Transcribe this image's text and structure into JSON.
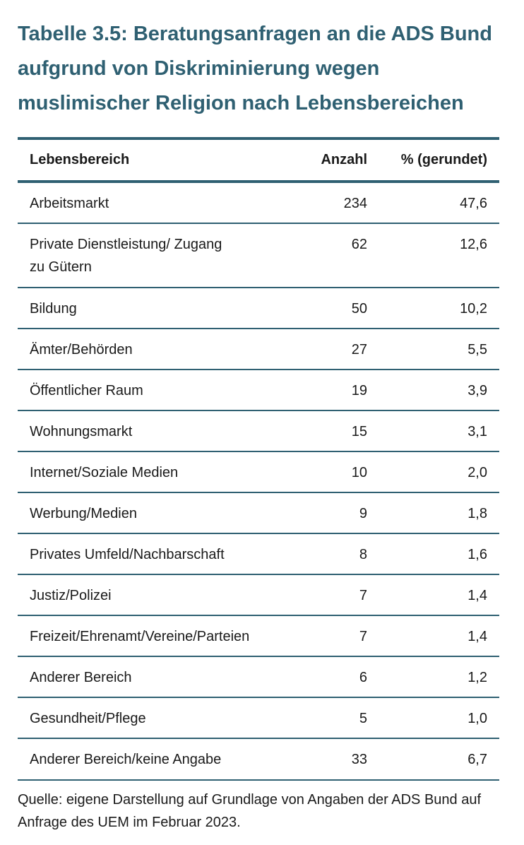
{
  "title": "Tabelle 3.5: Beratungsanfragen an die ADS Bund aufgrund von Diskriminierung wegen muslimischer Religion nach Lebensbereichen",
  "table": {
    "headers": {
      "area": "Lebensbereich",
      "count": "Anzahl",
      "percent": "% (gerundet)"
    },
    "rows": [
      {
        "area": "Arbeitsmarkt",
        "count": "234",
        "percent": "47,6"
      },
      {
        "area": "Private Dienstleistung/ Zugang zu Gütern",
        "count": "62",
        "percent": "12,6"
      },
      {
        "area": "Bildung",
        "count": "50",
        "percent": "10,2"
      },
      {
        "area": "Ämter/Behörden",
        "count": "27",
        "percent": "5,5"
      },
      {
        "area": "Öffentlicher Raum",
        "count": "19",
        "percent": "3,9"
      },
      {
        "area": "Wohnungsmarkt",
        "count": "15",
        "percent": "3,1"
      },
      {
        "area": "Internet/Soziale Medien",
        "count": "10",
        "percent": "2,0"
      },
      {
        "area": "Werbung/Medien",
        "count": "9",
        "percent": "1,8"
      },
      {
        "area": "Privates Umfeld/Nachbarschaft",
        "count": "8",
        "percent": "1,6"
      },
      {
        "area": "Justiz/Polizei",
        "count": "7",
        "percent": "1,4"
      },
      {
        "area": "Freizeit/Ehrenamt/Vereine/Parteien",
        "count": "7",
        "percent": "1,4"
      },
      {
        "area": "Anderer Bereich",
        "count": "6",
        "percent": "1,2"
      },
      {
        "area": "Gesundheit/Pflege",
        "count": "5",
        "percent": "1,0"
      },
      {
        "area": "Anderer Bereich/keine Angabe",
        "count": "33",
        "percent": "6,7"
      }
    ]
  },
  "source": "Quelle: eigene Darstellung auf Grundlage von Angaben der ADS Bund auf Anfrage des UEM im Februar 2023.",
  "colors": {
    "accent": "#2f6072",
    "text": "#1a1a1a"
  }
}
